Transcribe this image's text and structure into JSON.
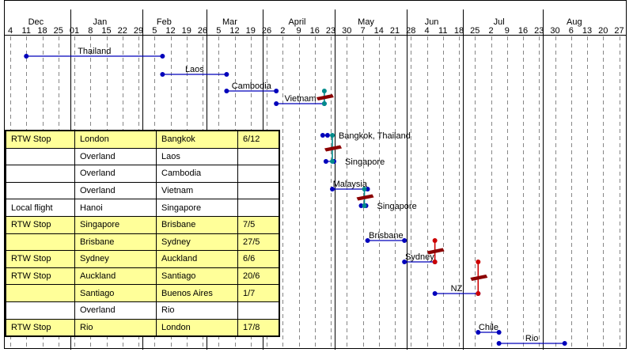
{
  "chart_data": {
    "type": "gantt",
    "title": "",
    "x_axis": {
      "months": [
        "Dec",
        "Jan",
        "Feb",
        "Mar",
        "April",
        "May",
        "Jun",
        "Jul",
        "Aug"
      ],
      "week_ticks": [
        "4",
        "11",
        "18",
        "25",
        "01",
        "8",
        "15",
        "22",
        "29",
        "5",
        "12",
        "19",
        "26",
        "5",
        "12",
        "19",
        "26",
        "2",
        "9",
        "16",
        "23",
        "30",
        "7",
        "14",
        "21",
        "28",
        "4",
        "11",
        "18",
        "25",
        "2",
        "9",
        "16",
        "23",
        "30",
        "6",
        "13",
        "20",
        "27"
      ]
    },
    "segments": [
      {
        "label": "Thailand",
        "start_week": 1.0,
        "end_week": 9.5,
        "color": "#0000bb"
      },
      {
        "label": "Laos",
        "start_week": 9.5,
        "end_week": 13.5,
        "color": "#0000bb"
      },
      {
        "label": "Cambodia",
        "start_week": 13.5,
        "end_week": 16.6,
        "color": "#0000bb"
      },
      {
        "label": "Vietnam",
        "start_week": 16.6,
        "end_week": 19.6,
        "color": "#0000bb"
      },
      {
        "label": "Bangkok, Thailand",
        "start_week": 19.5,
        "end_week": 19.8,
        "color": "#0000bb"
      },
      {
        "label": "Singapore",
        "start_week": 19.7,
        "end_week": 20.2,
        "color": "#0000bb"
      },
      {
        "label": "Malaysia",
        "start_week": 20.1,
        "end_week": 22.3,
        "color": "#0000bb"
      },
      {
        "label": "Singapore",
        "start_week": 21.9,
        "end_week": 22.2,
        "color": "#0000bb"
      },
      {
        "label": "Brisbane",
        "start_week": 22.3,
        "end_week": 24.6,
        "color": "#0000bb"
      },
      {
        "label": "Sydney",
        "start_week": 24.6,
        "end_week": 26.5,
        "color": "#0000bb"
      },
      {
        "label": "NZ",
        "start_week": 26.5,
        "end_week": 29.2,
        "color": "#0000bb"
      },
      {
        "label": "Chile",
        "start_week": 29.2,
        "end_week": 30.5,
        "color": "#0000bb"
      },
      {
        "label": "Rio",
        "start_week": 30.5,
        "end_week": 34.6,
        "color": "#0000bb"
      }
    ],
    "flights": [
      {
        "week": 19.6,
        "from_row": 3,
        "to_row": 4
      },
      {
        "week": 20.1,
        "from_row": 5,
        "to_row": 6
      },
      {
        "week": 22.1,
        "from_row": 7,
        "to_row": 8
      },
      {
        "week": 26.5,
        "from_row": 9,
        "to_row": 10
      },
      {
        "week": 29.2,
        "from_row": 10,
        "to_row": 11
      }
    ],
    "table": {
      "type": "table",
      "rows": [
        {
          "highlight": true,
          "cells": [
            "RTW Stop",
            "London",
            "Bangkok",
            "6/12"
          ]
        },
        {
          "highlight": false,
          "cells": [
            "",
            "Overland",
            "Laos",
            ""
          ]
        },
        {
          "highlight": false,
          "cells": [
            "",
            "Overland",
            "Cambodia",
            ""
          ]
        },
        {
          "highlight": false,
          "cells": [
            "",
            "Overland",
            "Vietnam",
            ""
          ]
        },
        {
          "highlight": false,
          "cells": [
            "Local flight",
            "Hanoi",
            "Singapore",
            ""
          ]
        },
        {
          "highlight": true,
          "cells": [
            "RTW Stop",
            "Singapore",
            "Brisbane",
            "7/5"
          ]
        },
        {
          "highlight": true,
          "cells": [
            "",
            "Brisbane",
            "Sydney",
            "27/5"
          ]
        },
        {
          "highlight": true,
          "cells": [
            "RTW Stop",
            "Sydney",
            "Auckland",
            "6/6"
          ]
        },
        {
          "highlight": true,
          "cells": [
            "RTW Stop",
            "Auckland",
            "Santiago",
            "20/6"
          ]
        },
        {
          "highlight": true,
          "cells": [
            "",
            "Santiago",
            "Buenos Aires",
            "1/7"
          ]
        },
        {
          "highlight": false,
          "cells": [
            "",
            "Overland",
            "Rio",
            ""
          ]
        },
        {
          "highlight": true,
          "cells": [
            "RTW Stop",
            "Rio",
            "London",
            "17/8"
          ]
        }
      ]
    }
  }
}
